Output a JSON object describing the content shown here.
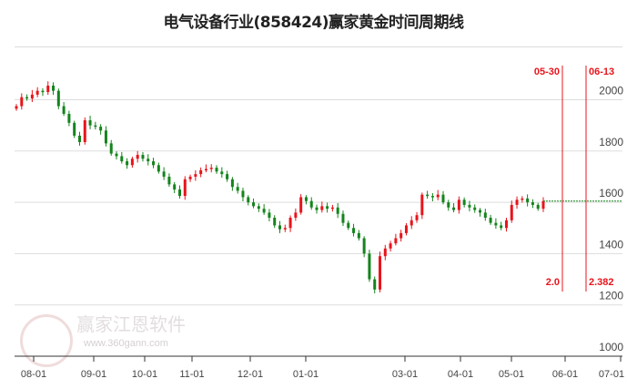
{
  "title": "电气设备行业(858424)赢家黄金时间周期线",
  "watermark": {
    "brand": "赢家江恩软件",
    "url": "www.360gann.com"
  },
  "colors": {
    "up": "#e8141b",
    "down": "#14841c",
    "cycle_line": "#e8141b",
    "grid": "#dddddd",
    "last_price_line": "#14841c"
  },
  "chart_data": {
    "type": "candlestick",
    "title": "电气设备行业(858424)赢家黄金时间周期线",
    "ylim": [
      1000,
      2100
    ],
    "yticks": [
      1000,
      1200,
      1400,
      1600,
      1800,
      2000
    ],
    "grid": true,
    "xticks": [
      "08-01",
      "09-01",
      "10-01",
      "11-01",
      "12-01",
      "01-01",
      "03-01",
      "04-01",
      "05-01",
      "06-01",
      "07-01"
    ],
    "close": [
      1975,
      2010,
      2005,
      2020,
      2035,
      2030,
      2055,
      2035,
      1975,
      1945,
      1910,
      1860,
      1835,
      1920,
      1900,
      1895,
      1880,
      1830,
      1790,
      1780,
      1760,
      1745,
      1770,
      1785,
      1770,
      1760,
      1745,
      1720,
      1700,
      1670,
      1650,
      1625,
      1690,
      1700,
      1710,
      1725,
      1730,
      1735,
      1720,
      1710,
      1690,
      1660,
      1645,
      1620,
      1600,
      1585,
      1575,
      1560,
      1540,
      1510,
      1495,
      1500,
      1540,
      1560,
      1620,
      1605,
      1580,
      1570,
      1585,
      1575,
      1580,
      1555,
      1520,
      1500,
      1480,
      1460,
      1400,
      1300,
      1260,
      1390,
      1420,
      1440,
      1460,
      1480,
      1510,
      1530,
      1550,
      1630,
      1625,
      1620,
      1630,
      1600,
      1580,
      1570,
      1610,
      1590,
      1580,
      1570,
      1560,
      1540,
      1520,
      1510,
      1500,
      1530,
      1590,
      1610,
      1615,
      1600,
      1590,
      1575,
      1605
    ],
    "last_price": 1605,
    "cycle_lines": [
      {
        "date": "05-30",
        "ratio": "2.0"
      },
      {
        "date": "06-13",
        "ratio": "2.382"
      }
    ]
  }
}
